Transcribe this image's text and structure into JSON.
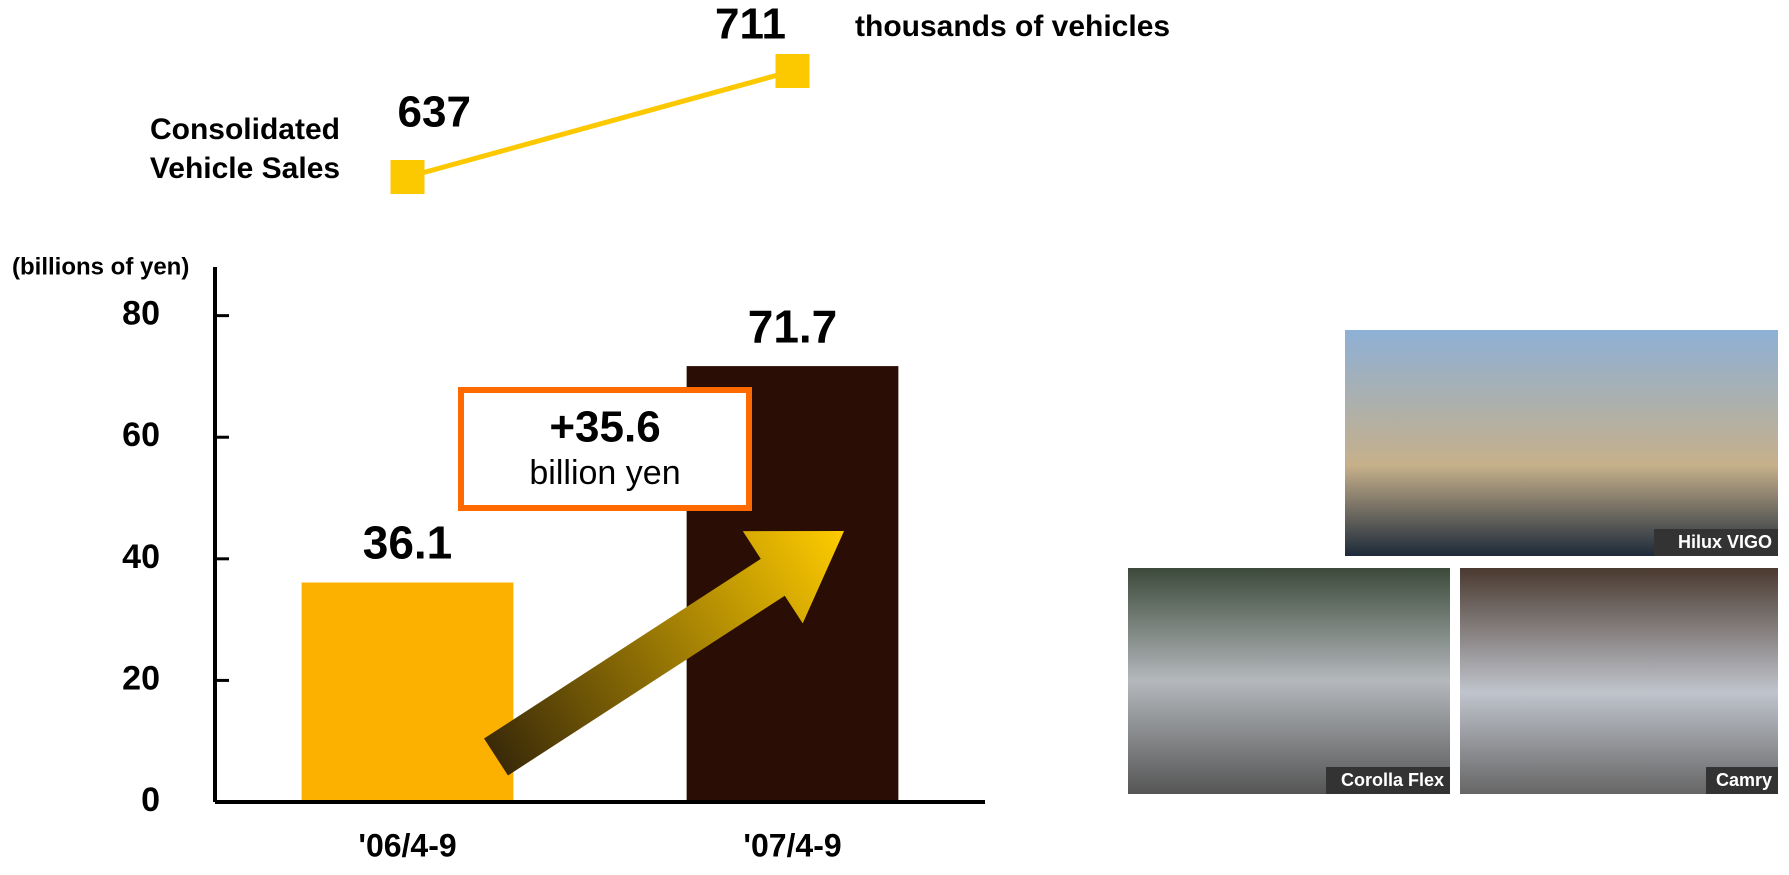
{
  "chart_data": [
    {
      "type": "line",
      "categories": [
        null,
        null
      ],
      "series": [
        {
          "name": "Consolidated\nVehicle Sales",
          "color": "#fcc800",
          "values": [
            637,
            711
          ]
        }
      ],
      "unit_label": "thousands of vehicles"
    },
    {
      "type": "bar",
      "ylabel": "(billions of yen)",
      "categories": [
        "'06/4-9",
        "'07/4-9"
      ],
      "values": [
        36.1,
        71.7
      ],
      "colors": [
        "#fcb000",
        "#2a0d05"
      ],
      "ylim": [
        0,
        88
      ],
      "yticks": [
        0,
        20,
        40,
        60,
        80
      ],
      "annotation": {
        "value": "+35.6",
        "unit": "billion yen"
      }
    }
  ],
  "photos": [
    {
      "caption": "Hilux VIGO"
    },
    {
      "caption": "Corolla Flex"
    },
    {
      "caption": "Camry"
    }
  ]
}
